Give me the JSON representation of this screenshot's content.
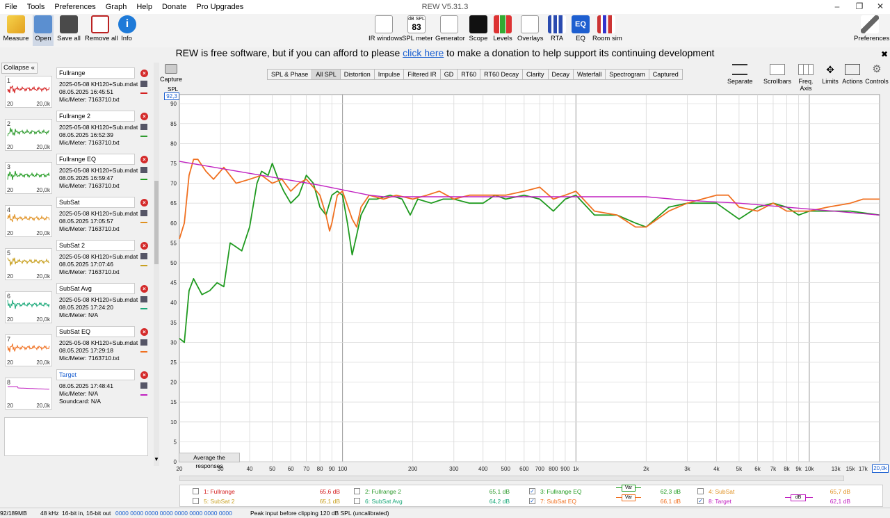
{
  "window_title": "REW V5.31.3",
  "menu": [
    "File",
    "Tools",
    "Preferences",
    "Graph",
    "Help",
    "Donate",
    "Pro Upgrades"
  ],
  "toolbar": {
    "measure": "Measure",
    "open": "Open",
    "save_all": "Save all",
    "remove_all": "Remove all",
    "info": "Info",
    "ir_windows": "IR windows",
    "spl_meter": "SPL meter",
    "spl_meter_value": "83",
    "spl_meter_badge": "dB SPL",
    "generator": "Generator",
    "scope": "Scope",
    "levels": "Levels",
    "overlays": "Overlays",
    "rta": "RTA",
    "eq": "EQ",
    "room_sim": "Room sim",
    "preferences": "Preferences"
  },
  "donate": {
    "before": "REW is free software, but if you can afford to please ",
    "link": "click here",
    "after": " to make a donation to help support its continuing development"
  },
  "left_panel": {
    "collapse_label": "Collapse",
    "measurements": [
      {
        "num": "1",
        "name": "Fullrange",
        "line1": "2025-05-08 KH120+Sub.mdat",
        "line2": "08.05.2025 16:45:51",
        "line3": "Mic/Meter: 7163710.txt",
        "color": "#d42020"
      },
      {
        "num": "2",
        "name": "Fullrange 2",
        "line1": "2025-05-08 KH120+Sub.mdat",
        "line2": "08.05.2025 16:52:39",
        "line3": "Mic/Meter: 7163710.txt",
        "color": "#2e9a2e"
      },
      {
        "num": "3",
        "name": "Fullrange EQ",
        "line1": "2025-05-08 KH120+Sub.mdat",
        "line2": "08.05.2025 16:59:47",
        "line3": "Mic/Meter: 7163710.txt",
        "color": "#1f9a1f"
      },
      {
        "num": "4",
        "name": "SubSat",
        "line1": "2025-05-08 KH120+Sub.mdat",
        "line2": "08.05.2025 17:05:57",
        "line3": "Mic/Meter: 7163710.txt",
        "color": "#e09020"
      },
      {
        "num": "5",
        "name": "SubSat 2",
        "line1": "2025-05-08 KH120+Sub.mdat",
        "line2": "08.05.2025 17:07:46",
        "line3": "Mic/Meter: 7163710.txt",
        "color": "#c8a020"
      },
      {
        "num": "6",
        "name": "SubSat Avg",
        "line1": "2025-05-08 KH120+Sub.mdat",
        "line2": "08.05.2025 17:24:20",
        "line3": "Mic/Meter: N/A",
        "color": "#18a878"
      },
      {
        "num": "7",
        "name": "SubSat EQ",
        "line1": "2025-05-08 KH120+Sub.mdat",
        "line2": "08.05.2025 17:29:18",
        "line3": "Mic/Meter: 7163710.txt",
        "color": "#f07020"
      },
      {
        "num": "8",
        "name": "Target",
        "line1": "08.05.2025 17:48:41",
        "line2": "Mic/Meter: N/A",
        "line3": "Soundcard: N/A",
        "color": "#c020c0"
      }
    ],
    "thumb_x_start": "20",
    "thumb_x_end": "20,0k"
  },
  "capture": {
    "label": "Capture",
    "spl_label": "SPL",
    "spl_top_value": "92,3"
  },
  "tabs": [
    "SPL & Phase",
    "All SPL",
    "Distortion",
    "Impulse",
    "Filtered IR",
    "GD",
    "RT60",
    "RT60 Decay",
    "Clarity",
    "Decay",
    "Waterfall",
    "Spectrogram",
    "Captured"
  ],
  "active_tab": "All SPL",
  "right_tools": {
    "separate": "Separate",
    "scrollbars": "Scrollbars",
    "freq_axis": "Freq. Axis",
    "limits": "Limits",
    "actions": "Actions",
    "controls": "Controls"
  },
  "average_button": "Average the responses",
  "x_end_label": "20,0k",
  "chart_data": {
    "type": "line",
    "xlabel": "",
    "ylabel": "SPL",
    "x_scale": "log",
    "xlim": [
      20,
      20000
    ],
    "ylim": [
      0,
      92.3
    ],
    "grid": true,
    "y_ticks": [
      0,
      5,
      10,
      15,
      20,
      25,
      30,
      35,
      40,
      45,
      50,
      55,
      60,
      65,
      70,
      75,
      80,
      85,
      90
    ],
    "x_ticks": [
      {
        "v": 20,
        "l": "20"
      },
      {
        "v": 30,
        "l": "30"
      },
      {
        "v": 40,
        "l": "40"
      },
      {
        "v": 50,
        "l": "50"
      },
      {
        "v": 60,
        "l": "60"
      },
      {
        "v": 70,
        "l": "70"
      },
      {
        "v": 80,
        "l": "80"
      },
      {
        "v": 90,
        "l": "90"
      },
      {
        "v": 100,
        "l": "100"
      },
      {
        "v": 200,
        "l": "200"
      },
      {
        "v": 300,
        "l": "300"
      },
      {
        "v": 400,
        "l": "400"
      },
      {
        "v": 500,
        "l": "500"
      },
      {
        "v": 600,
        "l": "600"
      },
      {
        "v": 700,
        "l": "700"
      },
      {
        "v": 800,
        "l": "800"
      },
      {
        "v": 900,
        "l": "900"
      },
      {
        "v": 1000,
        "l": "1k"
      },
      {
        "v": 2000,
        "l": "2k"
      },
      {
        "v": 3000,
        "l": "3k"
      },
      {
        "v": 4000,
        "l": "4k"
      },
      {
        "v": 5000,
        "l": "5k"
      },
      {
        "v": 6000,
        "l": "6k"
      },
      {
        "v": 7000,
        "l": "7k"
      },
      {
        "v": 8000,
        "l": "8k"
      },
      {
        "v": 9000,
        "l": "9k"
      },
      {
        "v": 10000,
        "l": "10k"
      },
      {
        "v": 13000,
        "l": "13k"
      },
      {
        "v": 15000,
        "l": "15k"
      },
      {
        "v": 17000,
        "l": "17k"
      }
    ],
    "series": [
      {
        "name": "Fullrange EQ",
        "color": "#1f9a1f",
        "points": [
          [
            20,
            31
          ],
          [
            21,
            30
          ],
          [
            22,
            43
          ],
          [
            23,
            46
          ],
          [
            25,
            42
          ],
          [
            27,
            43
          ],
          [
            29,
            45
          ],
          [
            31,
            44
          ],
          [
            33,
            55
          ],
          [
            35,
            54
          ],
          [
            37,
            53
          ],
          [
            40,
            59
          ],
          [
            43,
            70
          ],
          [
            45,
            73
          ],
          [
            48,
            72
          ],
          [
            50,
            75
          ],
          [
            53,
            71
          ],
          [
            56,
            68
          ],
          [
            60,
            65
          ],
          [
            65,
            67
          ],
          [
            70,
            72
          ],
          [
            75,
            70
          ],
          [
            80,
            64
          ],
          [
            85,
            62
          ],
          [
            90,
            67
          ],
          [
            95,
            68
          ],
          [
            100,
            67
          ],
          [
            105,
            60
          ],
          [
            110,
            52
          ],
          [
            115,
            57
          ],
          [
            120,
            62
          ],
          [
            130,
            66
          ],
          [
            140,
            66
          ],
          [
            160,
            67
          ],
          [
            180,
            66
          ],
          [
            195,
            62
          ],
          [
            210,
            66
          ],
          [
            240,
            65
          ],
          [
            270,
            66
          ],
          [
            300,
            66
          ],
          [
            350,
            65
          ],
          [
            400,
            65
          ],
          [
            450,
            67
          ],
          [
            500,
            66
          ],
          [
            600,
            67
          ],
          [
            700,
            66
          ],
          [
            800,
            63
          ],
          [
            900,
            66
          ],
          [
            1000,
            67
          ],
          [
            1200,
            62
          ],
          [
            1500,
            62
          ],
          [
            1800,
            60
          ],
          [
            2000,
            59
          ],
          [
            2500,
            64
          ],
          [
            3000,
            65
          ],
          [
            4000,
            65
          ],
          [
            5000,
            61
          ],
          [
            6000,
            64
          ],
          [
            7000,
            65
          ],
          [
            8000,
            64
          ],
          [
            9000,
            62
          ],
          [
            10000,
            63
          ],
          [
            12000,
            63
          ],
          [
            15000,
            63
          ],
          [
            20000,
            62
          ]
        ]
      },
      {
        "name": "SubSat EQ",
        "color": "#f07020",
        "points": [
          [
            20,
            56
          ],
          [
            21,
            60
          ],
          [
            22,
            72
          ],
          [
            23,
            76
          ],
          [
            24,
            76
          ],
          [
            26,
            73
          ],
          [
            28,
            71
          ],
          [
            31,
            74
          ],
          [
            35,
            70
          ],
          [
            40,
            71
          ],
          [
            45,
            72
          ],
          [
            50,
            70
          ],
          [
            55,
            71
          ],
          [
            60,
            68
          ],
          [
            65,
            70
          ],
          [
            70,
            71
          ],
          [
            75,
            69
          ],
          [
            80,
            67
          ],
          [
            85,
            62
          ],
          [
            88,
            58
          ],
          [
            90,
            60
          ],
          [
            95,
            67
          ],
          [
            100,
            68
          ],
          [
            110,
            61
          ],
          [
            115,
            59
          ],
          [
            120,
            64
          ],
          [
            130,
            67
          ],
          [
            150,
            66
          ],
          [
            170,
            67
          ],
          [
            200,
            66
          ],
          [
            230,
            67
          ],
          [
            260,
            68
          ],
          [
            300,
            66
          ],
          [
            350,
            67
          ],
          [
            400,
            67
          ],
          [
            500,
            67
          ],
          [
            600,
            68
          ],
          [
            700,
            69
          ],
          [
            800,
            66
          ],
          [
            900,
            67
          ],
          [
            1000,
            68
          ],
          [
            1200,
            63
          ],
          [
            1500,
            62
          ],
          [
            1800,
            59
          ],
          [
            2000,
            59
          ],
          [
            2500,
            63
          ],
          [
            3000,
            65
          ],
          [
            4000,
            67
          ],
          [
            4500,
            67
          ],
          [
            5000,
            64
          ],
          [
            6000,
            63
          ],
          [
            7000,
            65
          ],
          [
            8000,
            63
          ],
          [
            9000,
            63
          ],
          [
            10000,
            63
          ],
          [
            12000,
            64
          ],
          [
            15000,
            65
          ],
          [
            17000,
            66
          ],
          [
            20000,
            66
          ]
        ]
      },
      {
        "name": "Target",
        "color": "#c020c0",
        "points": [
          [
            20,
            75.5
          ],
          [
            40,
            72.5
          ],
          [
            80,
            69.5
          ],
          [
            130,
            67
          ],
          [
            150,
            66.6
          ],
          [
            1000,
            66.6
          ],
          [
            2000,
            66.6
          ],
          [
            3000,
            65.7
          ],
          [
            5000,
            65
          ],
          [
            10000,
            63.5
          ],
          [
            20000,
            62
          ]
        ]
      }
    ]
  },
  "legend": {
    "items": [
      {
        "id": 1,
        "label": "1: Fullrange",
        "value": "65,6 dB",
        "checked": false,
        "color": "#d42020"
      },
      {
        "id": 2,
        "label": "2: Fullrange 2",
        "value": "65,1 dB",
        "checked": false,
        "color": "#2e9a2e"
      },
      {
        "id": 3,
        "label": "3: Fullrange EQ",
        "value": "62,3 dB",
        "checked": true,
        "color": "#1f9a1f"
      },
      {
        "id": 4,
        "label": "4: SubSat",
        "value": "65,7 dB",
        "checked": false,
        "color": "#e09020"
      },
      {
        "id": 5,
        "label": "5: SubSat 2",
        "value": "65,1 dB",
        "checked": false,
        "color": "#c8a020"
      },
      {
        "id": 6,
        "label": "6: SubSat Avg",
        "value": "64,2 dB",
        "checked": false,
        "color": "#18a878"
      },
      {
        "id": 7,
        "label": "7: SubSat EQ",
        "value": "66,1 dB",
        "checked": true,
        "color": "#f07020"
      },
      {
        "id": 8,
        "label": "8: Target",
        "value": "62,1 dB",
        "checked": true,
        "color": "#c020c0"
      }
    ],
    "var_label": "Var",
    "var_db_label": "dB"
  },
  "status": {
    "memory": "92/189MB",
    "rate": "48 kHz",
    "bits": "16-bit in, 16-bit out",
    "levels": "0000 0000  0000 0000  0000 0000  0000 0000",
    "peak": "Peak input before clipping 120 dB SPL (uncalibrated)"
  }
}
